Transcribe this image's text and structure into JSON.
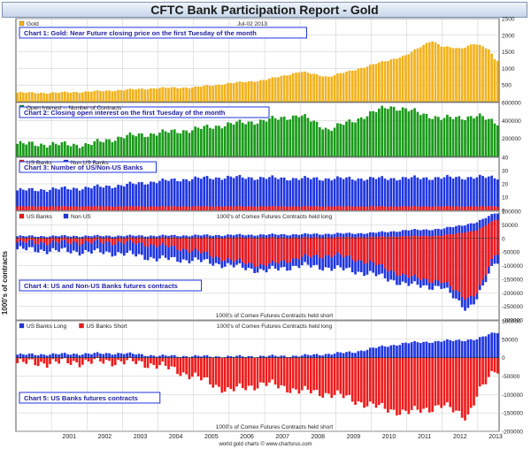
{
  "title": "CFTC Bank Participation Report - Gold",
  "ylabel_left": "1000's of contracts",
  "footer": "world gold charts © www.chartsrus.com",
  "x_years": [
    "2001",
    "2002",
    "2003",
    "2004",
    "2005",
    "2006",
    "2007",
    "2008",
    "2009",
    "2010",
    "2011",
    "2012",
    "2013"
  ],
  "colors": {
    "gold": "#f2b21e",
    "green": "#1a9a1a",
    "blue": "#1f36e0",
    "red": "#ee1c1c",
    "panel_bg": "#ffffff",
    "grid": "#c8c8c8",
    "frame": "#555555",
    "label_bg": "#ffffff",
    "label_border": "#1f36e0",
    "label_text": "#1f1fa0"
  },
  "chart_data": [
    {
      "type": "bar",
      "title": "Chart 1: Gold: Near Future closing price on the first Tuesday of the month",
      "legend": [
        {
          "name": "Gold",
          "color": "#f2b21e"
        }
      ],
      "date_label": "Jul-02 2013",
      "ylim": [
        0,
        2500
      ],
      "yticks": [
        500,
        1000,
        1500,
        2000,
        2500
      ],
      "anchors": [
        [
          2000.0,
          270
        ],
        [
          2001.0,
          265
        ],
        [
          2002.0,
          300
        ],
        [
          2003.0,
          350
        ],
        [
          2004.0,
          410
        ],
        [
          2005.0,
          430
        ],
        [
          2006.0,
          550
        ],
        [
          2007.0,
          650
        ],
        [
          2008.0,
          900
        ],
        [
          2008.8,
          750
        ],
        [
          2009.5,
          950
        ],
        [
          2010.0,
          1100
        ],
        [
          2011.0,
          1400
        ],
        [
          2011.7,
          1850
        ],
        [
          2012.0,
          1650
        ],
        [
          2012.5,
          1600
        ],
        [
          2012.9,
          1750
        ],
        [
          2013.3,
          1580
        ],
        [
          2013.5,
          1250
        ]
      ]
    },
    {
      "type": "bar",
      "title": "Chart 2: Closing open interest on the first Tuesday of the month",
      "legend": [
        {
          "name": "Open Interest -- Number of Contracts",
          "color": "#1a9a1a"
        }
      ],
      "ylim": [
        0,
        600000
      ],
      "yticks": [
        200000,
        400000,
        600000
      ],
      "anchors": [
        [
          2000.0,
          140000
        ],
        [
          2002.0,
          130000
        ],
        [
          2003.0,
          220000
        ],
        [
          2004.0,
          260000
        ],
        [
          2005.0,
          300000
        ],
        [
          2006.0,
          360000
        ],
        [
          2007.0,
          400000
        ],
        [
          2008.0,
          460000
        ],
        [
          2008.8,
          300000
        ],
        [
          2009.5,
          400000
        ],
        [
          2010.5,
          560000
        ],
        [
          2011.0,
          520000
        ],
        [
          2012.0,
          420000
        ],
        [
          2013.0,
          450000
        ],
        [
          2013.5,
          380000
        ]
      ]
    },
    {
      "type": "bar",
      "title": "Chart 3: Number of US/Non-US Banks",
      "legend": [
        {
          "name": "US Banks",
          "color": "#ee1c1c"
        },
        {
          "name": "Non US Banks",
          "color": "#1f36e0"
        }
      ],
      "ylim": [
        0,
        40
      ],
      "yticks": [
        0,
        10,
        20,
        30,
        40
      ],
      "series": [
        {
          "name": "Non US Banks",
          "anchors": [
            [
              2000.0,
              15
            ],
            [
              2002.0,
              17
            ],
            [
              2003.0,
              19
            ],
            [
              2004.0,
              22
            ],
            [
              2005.0,
              24
            ],
            [
              2006.0,
              25
            ],
            [
              2008.0,
              24
            ],
            [
              2010.0,
              24
            ],
            [
              2013.0,
              25
            ]
          ]
        },
        {
          "name": "US Banks",
          "anchors": [
            [
              2000.0,
              3
            ],
            [
              2013.0,
              3
            ]
          ]
        }
      ]
    },
    {
      "type": "bar",
      "title": "Chart 4: US and Non-US Banks futures contracts",
      "legend": [
        {
          "name": "US Banks",
          "color": "#ee1c1c"
        },
        {
          "name": "Non US",
          "color": "#1f36e0"
        }
      ],
      "note_top": "1000's of Comex Futures Contracts held long",
      "note_bottom": "1000's of Comex Futures Contracts held short",
      "ylim": [
        -300000,
        100000
      ],
      "yticks": [
        -300000,
        -250000,
        -200000,
        -150000,
        -100000,
        -50000,
        0,
        50000,
        100000
      ],
      "series": [
        {
          "name": "Non US Long",
          "anchors": [
            [
              2000.0,
              8000
            ],
            [
              2004.0,
              10000
            ],
            [
              2008.0,
              15000
            ],
            [
              2010.0,
              20000
            ],
            [
              2011.0,
              30000
            ],
            [
              2012.0,
              35000
            ],
            [
              2013.0,
              60000
            ],
            [
              2013.5,
              95000
            ]
          ]
        },
        {
          "name": "US Banks Long",
          "anchors": [
            [
              2000.0,
              2000
            ],
            [
              2008.0,
              3000
            ],
            [
              2010.0,
              5000
            ],
            [
              2011.0,
              8000
            ],
            [
              2012.0,
              10000
            ],
            [
              2013.0,
              30000
            ],
            [
              2013.5,
              70000
            ]
          ]
        },
        {
          "name": "Non US Short",
          "anchors": [
            [
              2000.0,
              -40000
            ],
            [
              2003.0,
              -55000
            ],
            [
              2004.0,
              -75000
            ],
            [
              2005.0,
              -80000
            ],
            [
              2006.0,
              -100000
            ],
            [
              2007.0,
              -120000
            ],
            [
              2008.0,
              -100000
            ],
            [
              2009.0,
              -110000
            ],
            [
              2010.0,
              -130000
            ],
            [
              2011.0,
              -170000
            ],
            [
              2012.0,
              -180000
            ],
            [
              2012.7,
              -260000
            ],
            [
              2013.0,
              -220000
            ],
            [
              2013.5,
              -80000
            ]
          ]
        },
        {
          "name": "US Banks Short",
          "anchors": [
            [
              2000.0,
              -15000
            ],
            [
              2003.0,
              -15000
            ],
            [
              2004.0,
              -25000
            ],
            [
              2005.0,
              -45000
            ],
            [
              2006.0,
              -80000
            ],
            [
              2007.0,
              -100000
            ],
            [
              2008.0,
              -70000
            ],
            [
              2009.0,
              -60000
            ],
            [
              2010.0,
              -90000
            ],
            [
              2011.0,
              -140000
            ],
            [
              2012.0,
              -160000
            ],
            [
              2012.7,
              -220000
            ],
            [
              2013.0,
              -200000
            ],
            [
              2013.5,
              -50000
            ]
          ]
        }
      ]
    },
    {
      "type": "bar",
      "title": "Chart 5: US Banks futures contracts",
      "legend": [
        {
          "name": "US Banks Long",
          "color": "#1f36e0"
        },
        {
          "name": "US Banks Short",
          "color": "#ee1c1c"
        }
      ],
      "note_top": "1000's of Comex Futures Contracts held long",
      "note_bottom": "1000's of Comex Futures Contracts held short",
      "ylim": [
        -200000,
        100000
      ],
      "yticks": [
        -200000,
        -150000,
        -100000,
        -50000,
        0,
        50000,
        100000
      ],
      "series": [
        {
          "name": "US Banks Long",
          "anchors": [
            [
              2000.0,
              8000
            ],
            [
              2003.0,
              12000
            ],
            [
              2004.0,
              5000
            ],
            [
              2006.0,
              3000
            ],
            [
              2008.0,
              5000
            ],
            [
              2009.5,
              15000
            ],
            [
              2010.0,
              25000
            ],
            [
              2011.0,
              40000
            ],
            [
              2012.0,
              45000
            ],
            [
              2013.0,
              50000
            ],
            [
              2013.5,
              70000
            ]
          ]
        },
        {
          "name": "US Banks Short",
          "anchors": [
            [
              2000.0,
              -15000
            ],
            [
              2003.0,
              -10000
            ],
            [
              2004.0,
              -20000
            ],
            [
              2005.0,
              -50000
            ],
            [
              2006.0,
              -90000
            ],
            [
              2007.0,
              -70000
            ],
            [
              2008.0,
              -90000
            ],
            [
              2009.0,
              -100000
            ],
            [
              2010.0,
              -130000
            ],
            [
              2011.0,
              -150000
            ],
            [
              2012.0,
              -130000
            ],
            [
              2012.7,
              -160000
            ],
            [
              2013.0,
              -100000
            ],
            [
              2013.5,
              -30000
            ]
          ]
        }
      ]
    }
  ]
}
